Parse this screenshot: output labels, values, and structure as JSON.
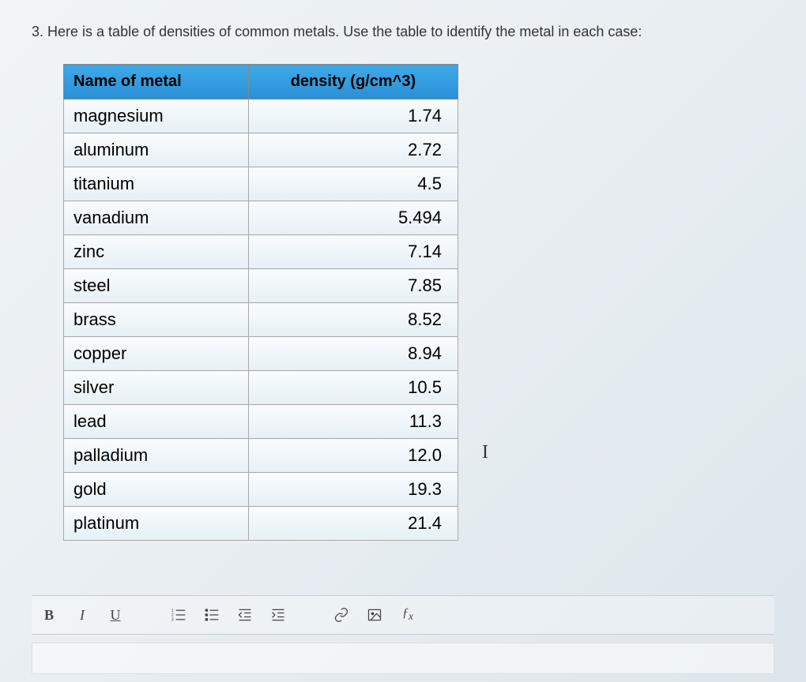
{
  "question": {
    "number": "3.",
    "text": "Here is a table of densities of common metals. Use the table to identify the metal in each case:"
  },
  "table": {
    "type": "table",
    "headers": [
      "Name of metal",
      "density (g/cm^3)"
    ],
    "header_bg_color": "#2b8fd6",
    "header_text_color": "#000000",
    "row_bg_gradient": [
      "#f8fcfe",
      "#e6f0f6"
    ],
    "border_color": "#999999",
    "font_size_header": 20,
    "font_size_cell": 22,
    "col_align": [
      "left",
      "right"
    ],
    "rows": [
      {
        "name": "magnesium",
        "density": "1.74"
      },
      {
        "name": "aluminum",
        "density": "2.72"
      },
      {
        "name": "titanium",
        "density": "4.5"
      },
      {
        "name": "vanadium",
        "density": "5.494"
      },
      {
        "name": "zinc",
        "density": "7.14"
      },
      {
        "name": "steel",
        "density": "7.85"
      },
      {
        "name": "brass",
        "density": "8.52"
      },
      {
        "name": "copper",
        "density": "8.94"
      },
      {
        "name": "silver",
        "density": "10.5"
      },
      {
        "name": "lead",
        "density": "11.3"
      },
      {
        "name": "palladium",
        "density": "12.0"
      },
      {
        "name": "gold",
        "density": "19.3"
      },
      {
        "name": "platinum",
        "density": "21.4"
      }
    ]
  },
  "toolbar": {
    "bold": "B",
    "italic": "I",
    "underline": "U",
    "fx": "fx"
  },
  "cursor_glyph": "I",
  "colors": {
    "page_bg": "#e8eef2",
    "text": "#222222",
    "toolbar_icon": "#444444"
  }
}
